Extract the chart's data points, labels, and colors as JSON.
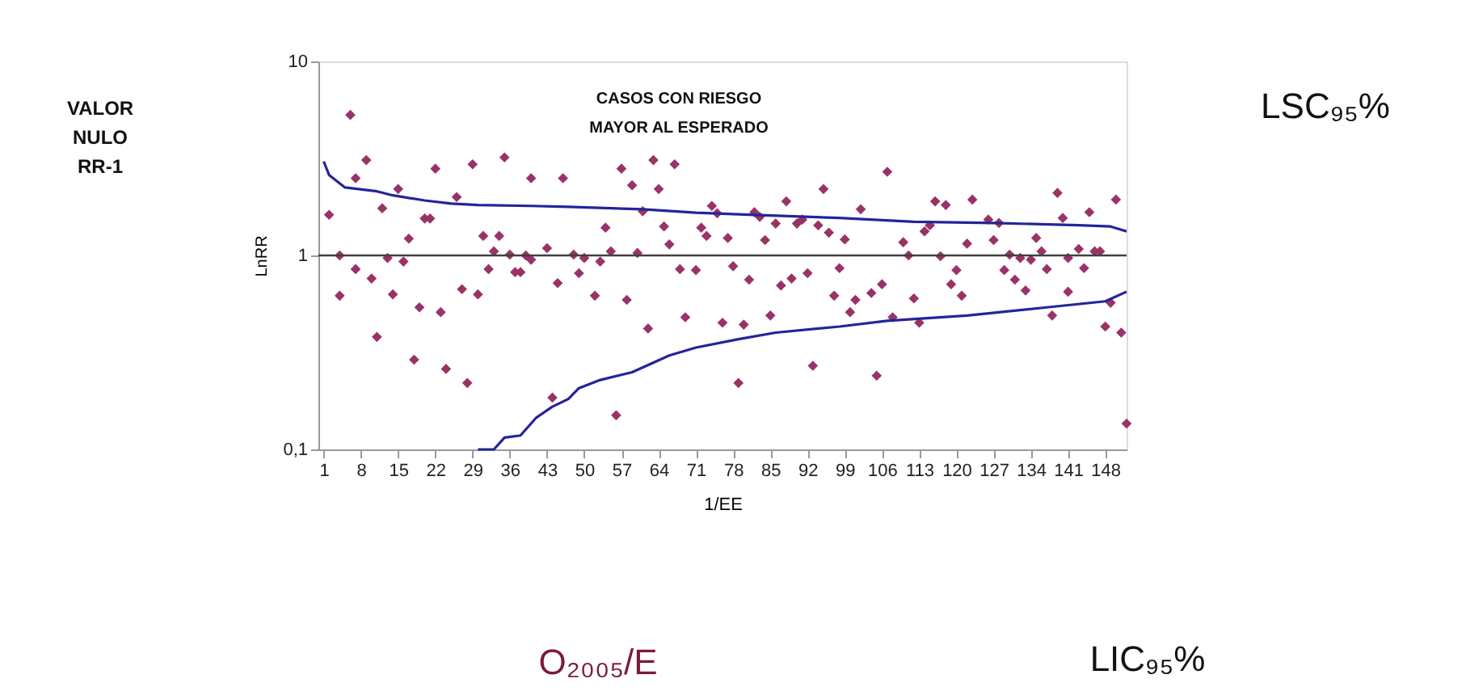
{
  "chart_data": {
    "type": "scatter",
    "xlabel": "1/EE",
    "ylabel": "LnRR",
    "log": "y",
    "xlim": [
      0,
      152
    ],
    "xticks": [
      1,
      8,
      15,
      22,
      29,
      36,
      43,
      50,
      57,
      64,
      71,
      78,
      85,
      92,
      99,
      106,
      113,
      120,
      127,
      134,
      141,
      148
    ],
    "ylim": [
      0.1,
      10
    ],
    "yticks": [
      {
        "value": 0.1,
        "label": "0,1"
      },
      1,
      10
    ],
    "ref_lines": [
      {
        "axis": "y",
        "value": 1,
        "color": "#404040"
      }
    ],
    "series": [
      {
        "type": "scatter",
        "marker": "diamond",
        "color": "#993366",
        "x": [
          2,
          4,
          6,
          4,
          7,
          7,
          9,
          10,
          11,
          12,
          13,
          14,
          15,
          16,
          17,
          18,
          19,
          20,
          21,
          22,
          23,
          24,
          26,
          27,
          28,
          29,
          30,
          31,
          32,
          33,
          34,
          35,
          36,
          37,
          38,
          39,
          40,
          40,
          43,
          44,
          45,
          46,
          48,
          49,
          50,
          52,
          53,
          54,
          55,
          56,
          57,
          58,
          59,
          60,
          61,
          62,
          63,
          64,
          65,
          66,
          67,
          68,
          69,
          71,
          72,
          73,
          74,
          75,
          76,
          77,
          78,
          79,
          80,
          81,
          82,
          83,
          84,
          85,
          86,
          87,
          88,
          89,
          90,
          91,
          92,
          93,
          94,
          95,
          96,
          97,
          98,
          99,
          100,
          101,
          102,
          104,
          105,
          106,
          107,
          108,
          110,
          111,
          112,
          113,
          114,
          115,
          116,
          117,
          118,
          119,
          120,
          121,
          122,
          123,
          126,
          127,
          128,
          129,
          130,
          131,
          132,
          133,
          134,
          135,
          136,
          137,
          138,
          139,
          140,
          141,
          141,
          143,
          144,
          145,
          146,
          147,
          148,
          149,
          150,
          151,
          152
        ],
        "values": [
          1.62,
          0.62,
          5.3,
          1.0,
          2.5,
          0.85,
          3.1,
          0.76,
          0.38,
          1.75,
          0.97,
          0.63,
          2.2,
          0.93,
          1.22,
          0.29,
          0.54,
          1.55,
          1.55,
          2.8,
          0.51,
          0.26,
          2.0,
          0.67,
          0.22,
          2.95,
          0.63,
          1.26,
          0.85,
          1.05,
          1.26,
          3.2,
          1.01,
          0.82,
          0.82,
          1.0,
          2.5,
          0.95,
          1.09,
          0.185,
          0.72,
          2.5,
          1.01,
          0.81,
          0.97,
          0.62,
          0.93,
          1.39,
          1.05,
          0.15,
          2.8,
          0.59,
          2.3,
          1.03,
          1.69,
          0.42,
          3.1,
          2.2,
          1.41,
          1.14,
          2.95,
          0.85,
          0.48,
          0.84,
          1.39,
          1.26,
          1.8,
          1.65,
          0.45,
          1.23,
          0.88,
          0.22,
          0.44,
          0.75,
          1.67,
          1.58,
          1.2,
          0.49,
          1.46,
          0.7,
          1.9,
          0.76,
          1.46,
          1.53,
          0.81,
          0.27,
          1.43,
          2.2,
          1.31,
          0.62,
          0.86,
          1.21,
          0.51,
          0.59,
          1.73,
          0.64,
          0.24,
          0.71,
          2.7,
          0.48,
          1.17,
          1.0,
          0.6,
          0.45,
          1.33,
          1.43,
          1.9,
          0.99,
          1.82,
          0.71,
          0.84,
          0.62,
          1.15,
          1.94,
          1.53,
          1.2,
          1.47,
          0.84,
          1.01,
          0.75,
          0.97,
          0.66,
          0.95,
          1.23,
          1.05,
          0.85,
          0.49,
          2.1,
          1.56,
          0.65,
          0.97,
          1.08,
          0.86,
          1.67,
          1.05,
          1.05,
          0.43,
          0.57,
          1.94,
          0.4,
          0.136
        ]
      },
      {
        "type": "line",
        "marker": "none",
        "line_style": "solid",
        "color": "#24249c",
        "x": [
          1,
          2,
          5,
          11,
          14,
          20,
          25,
          30,
          40,
          47,
          61,
          71,
          81,
          98,
          112,
          127,
          143,
          149,
          152
        ],
        "values": [
          3.05,
          2.6,
          2.24,
          2.14,
          2.04,
          1.92,
          1.85,
          1.82,
          1.8,
          1.78,
          1.73,
          1.66,
          1.62,
          1.56,
          1.49,
          1.47,
          1.43,
          1.41,
          1.33
        ]
      },
      {
        "type": "line",
        "marker": "none",
        "line_style": "solid",
        "color": "#24249c",
        "x": [
          30,
          33,
          35,
          38,
          41,
          44,
          47,
          49,
          53,
          59,
          66,
          71,
          79,
          86,
          98,
          107,
          122,
          137,
          148,
          152
        ],
        "values": [
          0.1,
          0.1,
          0.115,
          0.118,
          0.146,
          0.166,
          0.182,
          0.207,
          0.228,
          0.25,
          0.305,
          0.335,
          0.37,
          0.4,
          0.43,
          0.46,
          0.49,
          0.54,
          0.58,
          0.65
        ]
      }
    ],
    "annotations": [
      "VALOR\nNULO\nRR-1",
      "CASOS CON RIESGO\nMAYOR AL ESPERADO",
      "LSC₉₅%",
      "O₂₀₀₅/E",
      "LIC₉₅%"
    ]
  }
}
